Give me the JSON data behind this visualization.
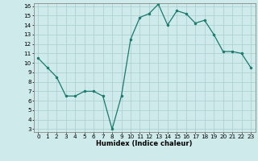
{
  "x": [
    0,
    1,
    2,
    3,
    4,
    5,
    6,
    7,
    8,
    9,
    10,
    11,
    12,
    13,
    14,
    15,
    16,
    17,
    18,
    19,
    20,
    21,
    22,
    23
  ],
  "y": [
    10.5,
    9.5,
    8.5,
    6.5,
    6.5,
    7.0,
    7.0,
    6.5,
    3.0,
    6.5,
    12.5,
    14.8,
    15.2,
    16.2,
    14.0,
    15.5,
    15.2,
    14.2,
    14.5,
    13.0,
    11.2,
    11.2,
    11.0,
    9.5
  ],
  "xlabel": "Humidex (Indice chaleur)",
  "ylim": [
    3,
    16
  ],
  "xlim": [
    -0.5,
    23.5
  ],
  "yticks": [
    3,
    4,
    5,
    6,
    7,
    8,
    9,
    10,
    11,
    12,
    13,
    14,
    15,
    16
  ],
  "xticks": [
    0,
    1,
    2,
    3,
    4,
    5,
    6,
    7,
    8,
    9,
    10,
    11,
    12,
    13,
    14,
    15,
    16,
    17,
    18,
    19,
    20,
    21,
    22,
    23
  ],
  "line_color": "#1a7a6e",
  "marker_color": "#1a7a6e",
  "bg_color": "#ceeaea",
  "grid_color": "#a8cccc",
  "border_color": "#888888",
  "tick_fontsize": 5.2,
  "xlabel_fontsize": 6.0
}
